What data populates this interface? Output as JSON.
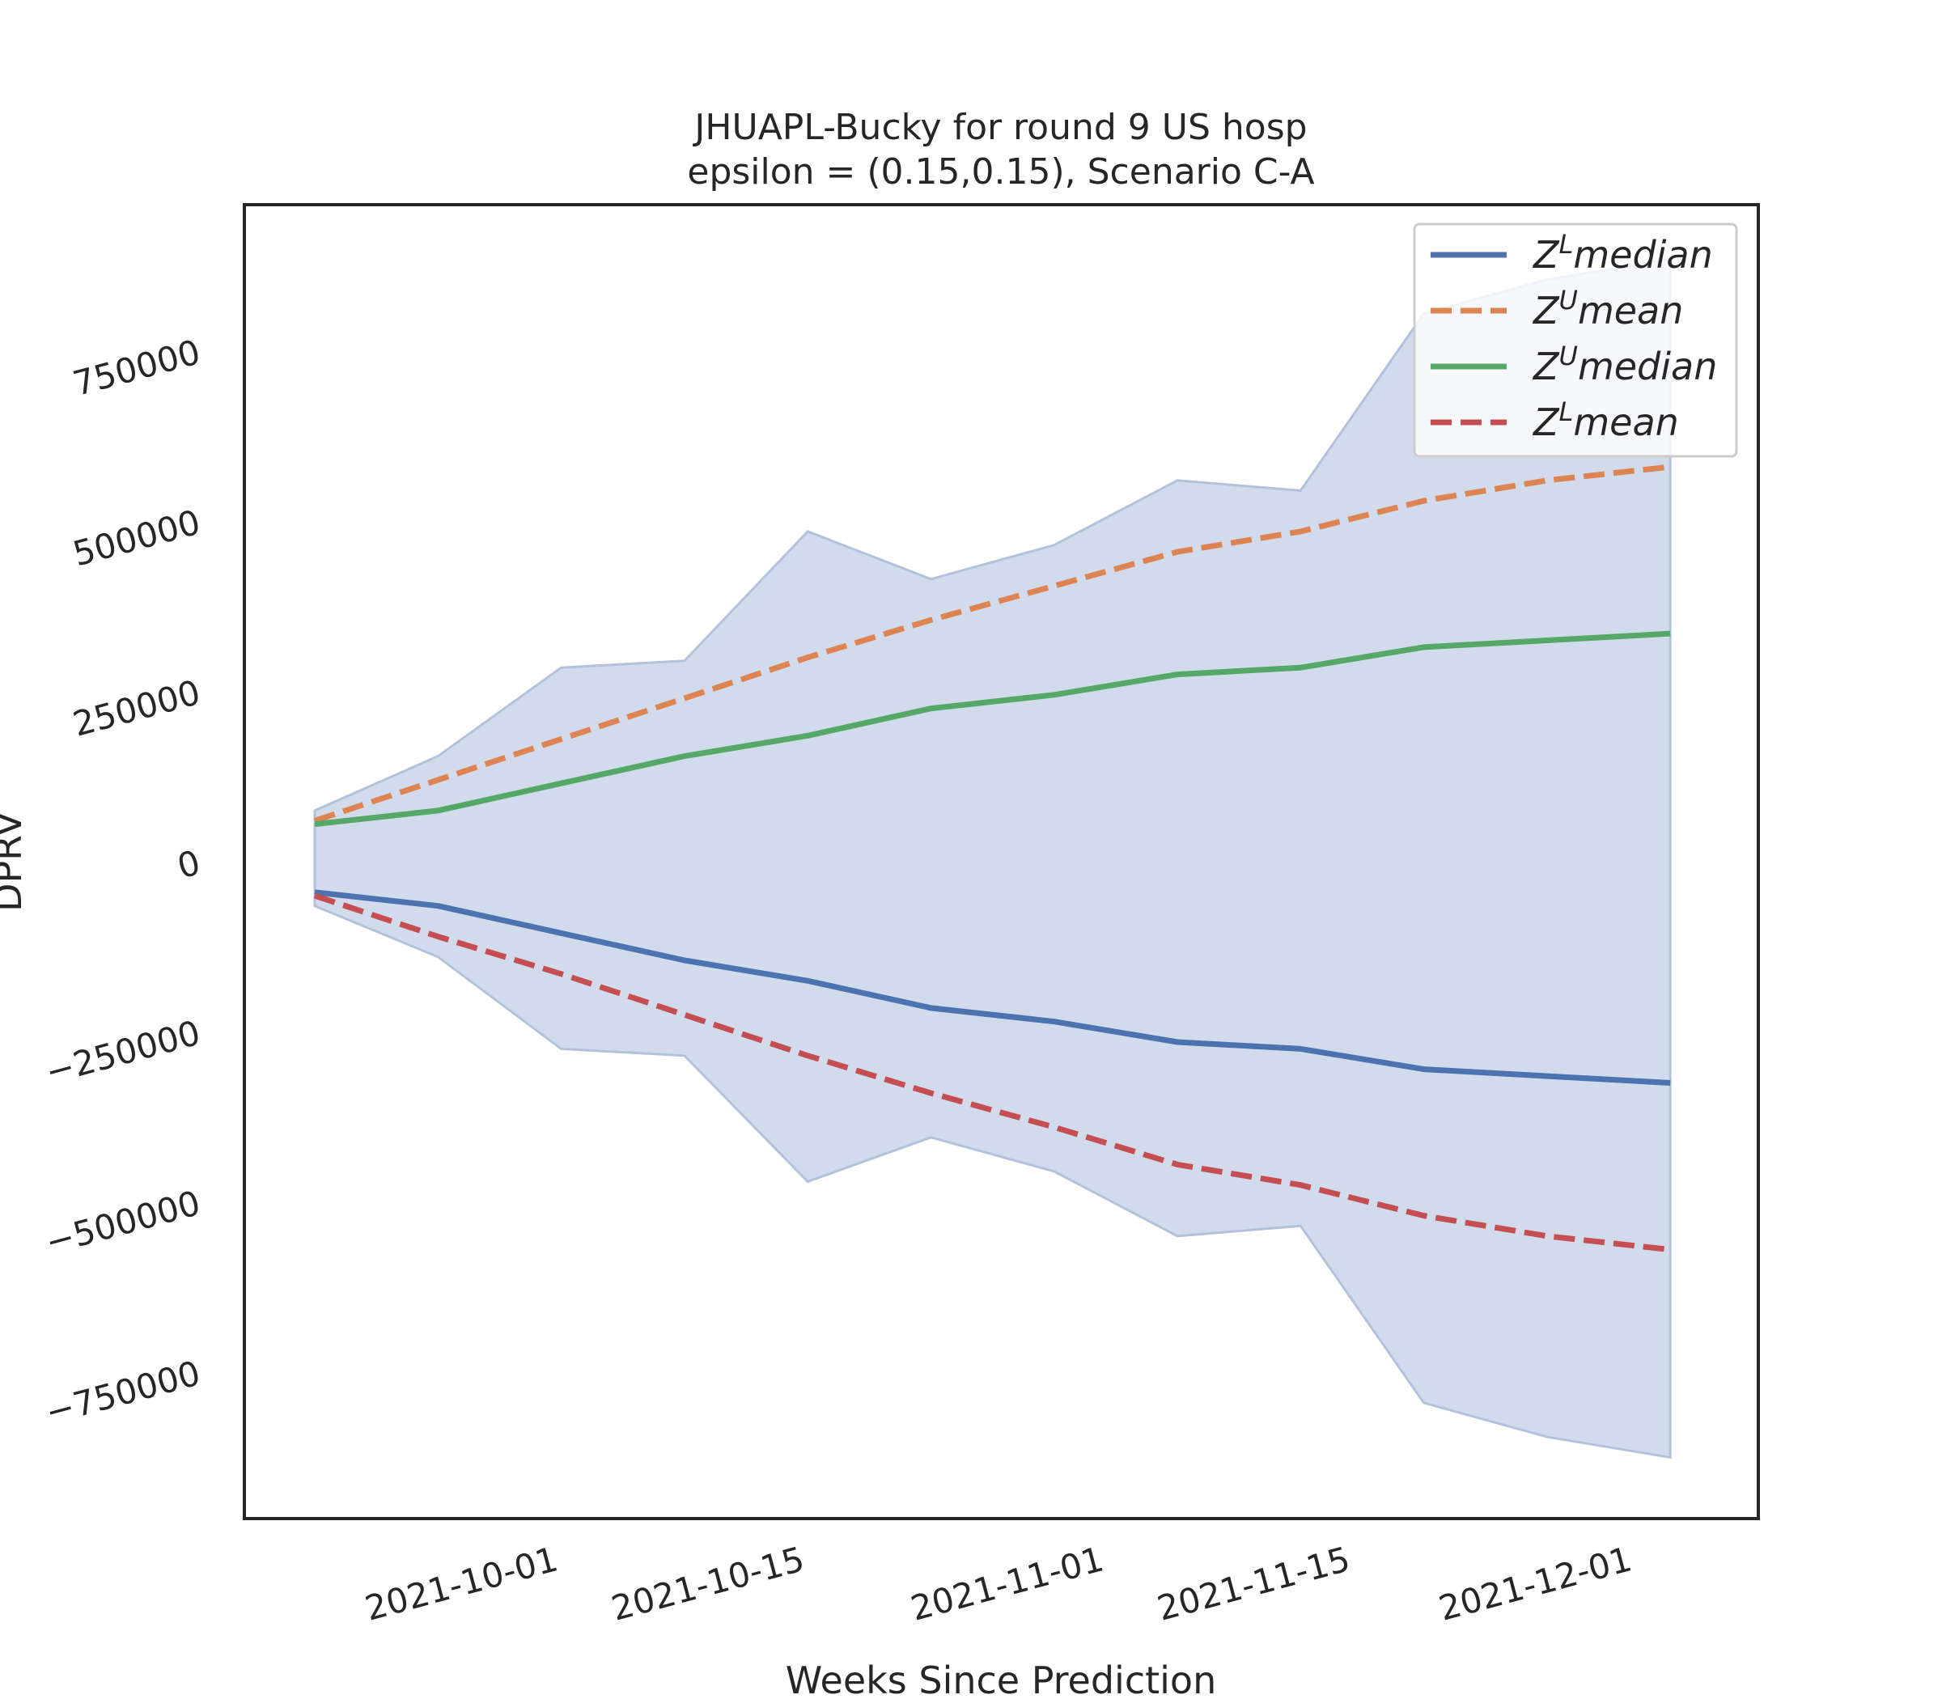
{
  "chart_data": {
    "type": "line",
    "title_line1": "JHUAPL-Bucky for round 9 US  hosp",
    "title_line2": "epsilon = (0.15,0.15), Scenario C-A",
    "xlabel": "Weeks Since Prediction",
    "ylabel": "DPRV",
    "x": [
      "2021-09-18",
      "2021-09-25",
      "2021-10-02",
      "2021-10-09",
      "2021-10-16",
      "2021-10-23",
      "2021-10-30",
      "2021-11-06",
      "2021-11-13",
      "2021-11-20",
      "2021-11-27",
      "2021-12-04"
    ],
    "xlim": [
      "2021-09-14",
      "2021-12-09"
    ],
    "xticks": [
      "2021-10-01",
      "2021-10-15",
      "2021-11-01",
      "2021-11-15",
      "2021-12-01"
    ],
    "ylim": [
      -965000,
      965000
    ],
    "yticks": [
      {
        "value": 750000,
        "label": "750000"
      },
      {
        "value": 500000,
        "label": "500000"
      },
      {
        "value": 250000,
        "label": "250000"
      },
      {
        "value": 0,
        "label": "0"
      },
      {
        "value": -250000,
        "label": "−250000"
      },
      {
        "value": -500000,
        "label": "−500000"
      },
      {
        "value": -750000,
        "label": "−750000"
      }
    ],
    "grid": false,
    "legend_position": "top-right",
    "band": {
      "upper": [
        75000,
        155000,
        285000,
        295000,
        485000,
        415000,
        465000,
        560000,
        545000,
        805000,
        855000,
        885000
      ],
      "lower": [
        -65000,
        -140000,
        -275000,
        -285000,
        -470000,
        -405000,
        -455000,
        -550000,
        -535000,
        -795000,
        -845000,
        -875000
      ],
      "color": "#d2dbeb"
    },
    "series": [
      {
        "name": "Z^L median",
        "name_base": "Z",
        "name_sup": "L",
        "name_rest": "median",
        "style": "solid",
        "color": "#4c72b0",
        "values": [
          -45000,
          -65000,
          -105000,
          -145000,
          -175000,
          -215000,
          -235000,
          -265000,
          -275000,
          -305000,
          -315000,
          -325000
        ]
      },
      {
        "name": "Z^U mean",
        "name_base": "Z",
        "name_sup": "U",
        "name_rest": "mean",
        "style": "dashed",
        "color": "#dd8452",
        "values": [
          60000,
          120000,
          180000,
          240000,
          300000,
          355000,
          405000,
          455000,
          485000,
          530000,
          560000,
          580000
        ]
      },
      {
        "name": "Z^U median",
        "name_base": "Z",
        "name_sup": "U",
        "name_rest": "median",
        "style": "solid",
        "color": "#55a868",
        "values": [
          55000,
          75000,
          115000,
          155000,
          185000,
          225000,
          245000,
          275000,
          285000,
          315000,
          325000,
          335000
        ]
      },
      {
        "name": "Z^L mean",
        "name_base": "Z",
        "name_sup": "L",
        "name_rest": "mean",
        "style": "dashed",
        "color": "#c44e52",
        "values": [
          -50000,
          -110000,
          -165000,
          -225000,
          -285000,
          -340000,
          -390000,
          -445000,
          -475000,
          -520000,
          -550000,
          -570000
        ]
      }
    ]
  }
}
